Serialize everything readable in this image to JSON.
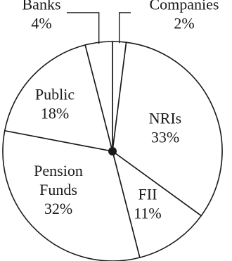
{
  "chart_data": {
    "type": "pie",
    "title": "",
    "slices": [
      {
        "label": "Companies",
        "value": 2,
        "value_label": "2%"
      },
      {
        "label": "NRIs",
        "value": 33,
        "value_label": "33%"
      },
      {
        "label": "FII",
        "value": 11,
        "value_label": "11%"
      },
      {
        "label": "Pension Funds",
        "value": 32,
        "value_label": "32%"
      },
      {
        "label": "Public",
        "value": 18,
        "value_label": "18%"
      },
      {
        "label": "Banks",
        "value": 4,
        "value_label": "4%"
      }
    ],
    "unit": "%",
    "colors": {
      "fill": "#ffffff",
      "stroke": "#1a1a1a",
      "center": "#1a1a1a"
    }
  }
}
